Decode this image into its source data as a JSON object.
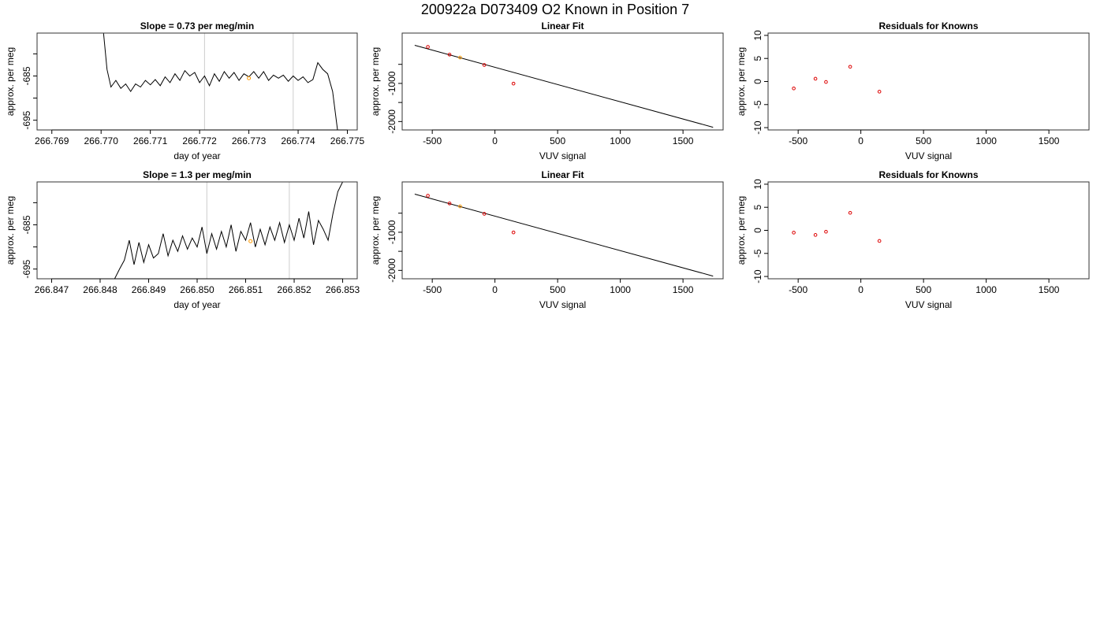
{
  "figure_title": "200922a     D073409   O2 Known in Position  7",
  "colors": {
    "line": "#000000",
    "marker": "#dd0000",
    "highlight": "#ff9900",
    "vline": "#cccccc"
  },
  "chart_data": [
    {
      "id": "p1",
      "type": "line",
      "title": "Slope =  0.73  per meg/min",
      "xlabel": "day of year",
      "ylabel": "approx. per meg",
      "xlim": [
        266.7687,
        266.7752
      ],
      "ylim": [
        -697.2,
        -675.3
      ],
      "xticks": [
        266.769,
        266.77,
        266.771,
        266.772,
        266.773,
        266.774,
        266.775
      ],
      "xtick_labels": [
        "266.769",
        "266.770",
        "266.771",
        "266.772",
        "266.773",
        "266.774",
        "266.775"
      ],
      "yticks": [
        -695,
        -690,
        -685,
        -680
      ],
      "ytick_labels": [
        "-695",
        "",
        "-685",
        ""
      ],
      "vlines": [
        266.7721,
        266.7739
      ],
      "highlight": [
        266.773,
        -685.5
      ],
      "x": [
        266.77005,
        266.77012,
        266.7702,
        266.7703,
        266.7704,
        266.7705,
        266.7706,
        266.7707,
        266.7708,
        266.7709,
        266.771,
        266.7711,
        266.7712,
        266.7713,
        266.7714,
        266.7715,
        266.7716,
        266.7717,
        266.7718,
        266.7719,
        266.772,
        266.7721,
        266.7722,
        266.7723,
        266.7724,
        266.7725,
        266.7726,
        266.7727,
        266.7728,
        266.7729,
        266.773,
        266.7731,
        266.7732,
        266.7733,
        266.7734,
        266.7735,
        266.7736,
        266.7737,
        266.7738,
        266.7739,
        266.774,
        266.7741,
        266.7742,
        266.7743,
        266.7744,
        266.7745,
        266.7746,
        266.7747,
        266.7748
      ],
      "y": [
        -675.3,
        -683.5,
        -687.5,
        -686.0,
        -687.8,
        -686.8,
        -688.5,
        -686.8,
        -687.5,
        -686.0,
        -687.0,
        -685.8,
        -687.2,
        -685.2,
        -686.5,
        -684.5,
        -686.0,
        -683.8,
        -685.0,
        -684.2,
        -686.5,
        -685.0,
        -687.2,
        -684.5,
        -686.2,
        -684.0,
        -685.5,
        -684.2,
        -686.0,
        -684.5,
        -685.2,
        -684.0,
        -685.5,
        -684.0,
        -686.0,
        -684.8,
        -685.5,
        -684.8,
        -686.2,
        -685.0,
        -686.0,
        -685.2,
        -686.5,
        -685.8,
        -682.0,
        -683.5,
        -684.5,
        -688.5,
        -697.2
      ]
    },
    {
      "id": "p2",
      "type": "scatter",
      "title": "Linear Fit",
      "xlabel": "VUV signal",
      "ylabel": "approx. per meg",
      "xlim": [
        -740,
        1820
      ],
      "ylim": [
        -2220,
        320
      ],
      "xticks": [
        -500,
        0,
        500,
        1000,
        1500
      ],
      "xtick_labels": [
        "-500",
        "0",
        "500",
        "1000",
        "1500"
      ],
      "yticks": [
        -2000,
        -1500,
        -1000,
        -500
      ],
      "ytick_labels": [
        "-2000",
        "",
        "-1000",
        ""
      ],
      "x": [
        -535,
        -362,
        -278,
        -85,
        148
      ],
      "y": [
        -42,
        -245,
        -322,
        -517,
        -1005
      ],
      "highlight_index": 2,
      "fit_line": {
        "x": [
          -640,
          1740
        ],
        "y": [
          0,
          -2150
        ]
      }
    },
    {
      "id": "p3",
      "type": "scatter",
      "title": "Residuals for Knowns",
      "xlabel": "VUV signal",
      "ylabel": "approx. per meg",
      "xlim": [
        -740,
        1820
      ],
      "ylim": [
        -10.5,
        10.5
      ],
      "xticks": [
        -500,
        0,
        500,
        1000,
        1500
      ],
      "xtick_labels": [
        "-500",
        "0",
        "500",
        "1000",
        "1500"
      ],
      "yticks": [
        -10,
        -5,
        0,
        5,
        10
      ],
      "ytick_labels": [
        "-10",
        "-5",
        "0",
        "5",
        "10"
      ],
      "x": [
        -535,
        -362,
        -278,
        -85,
        148
      ],
      "y": [
        -1.5,
        0.6,
        -0.1,
        3.2,
        -2.2
      ]
    },
    {
      "id": "p4",
      "type": "line",
      "title": "Slope =  1.3  per meg/min",
      "xlabel": "day of year",
      "ylabel": "approx. per meg",
      "xlim": [
        266.8467,
        266.8533
      ],
      "ylim": [
        -697.2,
        -675.3
      ],
      "xticks": [
        266.847,
        266.848,
        266.849,
        266.85,
        266.851,
        266.852,
        266.853
      ],
      "xtick_labels": [
        "266.847",
        "266.848",
        "266.849",
        "266.850",
        "266.851",
        "266.852",
        "266.853"
      ],
      "yticks": [
        -695,
        -690,
        -685,
        -680
      ],
      "ytick_labels": [
        "-695",
        "",
        "-685",
        ""
      ],
      "vlines": [
        266.8502,
        266.8519
      ],
      "highlight": [
        266.8511,
        -688.7
      ],
      "x": [
        266.8483,
        266.8484,
        266.8485,
        266.8486,
        266.8487,
        266.8488,
        266.8489,
        266.849,
        266.8491,
        266.8492,
        266.8493,
        266.8494,
        266.8495,
        266.8496,
        266.8497,
        266.8498,
        266.8499,
        266.85,
        266.8501,
        266.8502,
        266.8503,
        266.8504,
        266.8505,
        266.8506,
        266.8507,
        266.8508,
        266.8509,
        266.851,
        266.8511,
        266.8512,
        266.8513,
        266.8514,
        266.8515,
        266.8516,
        266.8517,
        266.8518,
        266.8519,
        266.852,
        266.8521,
        266.8522,
        266.8523,
        266.8524,
        266.8525,
        266.8526,
        266.8527,
        266.8528,
        266.8529,
        266.853
      ],
      "y": [
        -697.2,
        -695.0,
        -693.0,
        -688.5,
        -694.0,
        -689.0,
        -693.5,
        -689.5,
        -692.5,
        -691.5,
        -687.0,
        -692.0,
        -688.5,
        -691.0,
        -687.5,
        -690.5,
        -688.0,
        -690.0,
        -685.5,
        -691.5,
        -687.0,
        -690.5,
        -686.5,
        -690.0,
        -685.0,
        -691.0,
        -686.5,
        -688.5,
        -684.5,
        -690.0,
        -686.0,
        -689.5,
        -685.5,
        -688.5,
        -684.5,
        -689.0,
        -685.0,
        -688.5,
        -683.5,
        -688.0,
        -682.0,
        -689.5,
        -684.0,
        -686.0,
        -688.5,
        -682.5,
        -677.5,
        -675.3
      ]
    },
    {
      "id": "p5",
      "type": "scatter",
      "title": "Linear Fit",
      "xlabel": "VUV signal",
      "ylabel": "approx. per meg",
      "xlim": [
        -740,
        1820
      ],
      "ylim": [
        -2220,
        320
      ],
      "xticks": [
        -500,
        0,
        500,
        1000,
        1500
      ],
      "xtick_labels": [
        "-500",
        "0",
        "500",
        "1000",
        "1500"
      ],
      "yticks": [
        -2000,
        -1500,
        -1000,
        -500
      ],
      "ytick_labels": [
        "-2000",
        "",
        "-1000",
        ""
      ],
      "x": [
        -535,
        -362,
        -278,
        -85,
        148
      ],
      "y": [
        -42,
        -245,
        -322,
        -517,
        -1005
      ],
      "highlight_index": 2,
      "fit_line": {
        "x": [
          -640,
          1740
        ],
        "y": [
          0,
          -2150
        ]
      }
    },
    {
      "id": "p6",
      "type": "scatter",
      "title": "Residuals for Knowns",
      "xlabel": "VUV signal",
      "ylabel": "approx. per meg",
      "xlim": [
        -740,
        1820
      ],
      "ylim": [
        -10.5,
        10.5
      ],
      "xticks": [
        -500,
        0,
        500,
        1000,
        1500
      ],
      "xtick_labels": [
        "-500",
        "0",
        "500",
        "1000",
        "1500"
      ],
      "yticks": [
        -10,
        -5,
        0,
        5,
        10
      ],
      "ytick_labels": [
        "-10",
        "-5",
        "0",
        "5",
        "10"
      ],
      "x": [
        -535,
        -362,
        -278,
        -85,
        148
      ],
      "y": [
        -0.5,
        -1.0,
        -0.3,
        3.8,
        -2.3
      ]
    }
  ]
}
